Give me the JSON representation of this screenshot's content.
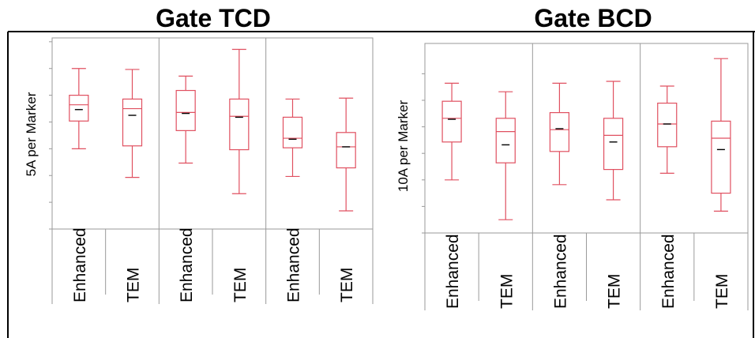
{
  "chart_data": [
    {
      "type": "box",
      "title": "Gate TCD",
      "ylabel": "5A per Marker",
      "categories": [
        "Enhanced",
        "TEM",
        "Enhanced",
        "TEM",
        "Enhanced",
        "TEM"
      ],
      "groups": 3,
      "ylim": [
        0,
        100
      ],
      "yticks": [
        0,
        14,
        28,
        42,
        56,
        70,
        84,
        98
      ],
      "grid": false,
      "box_color": "#e05060",
      "boxes": [
        {
          "min": 42,
          "q1": 56.5,
          "median": 65,
          "q3": 70,
          "max": 84,
          "mean": 62.5
        },
        {
          "min": 27,
          "q1": 43.5,
          "median": 63,
          "q3": 68,
          "max": 83.5,
          "mean": 59.5
        },
        {
          "min": 34.5,
          "q1": 51.5,
          "median": 61,
          "q3": 72.5,
          "max": 80,
          "mean": 60.5
        },
        {
          "min": 18.5,
          "q1": 41.5,
          "median": 59,
          "q3": 68,
          "max": 94,
          "mean": 58.5
        },
        {
          "min": 27.5,
          "q1": 42.5,
          "median": 47.5,
          "q3": 58.5,
          "max": 68,
          "mean": 47
        },
        {
          "min": 9.5,
          "q1": 32,
          "median": 43,
          "q3": 50.5,
          "max": 68.5,
          "mean": 43
        }
      ]
    },
    {
      "type": "box",
      "title": "Gate BCD",
      "ylabel": "10A per Marker",
      "categories": [
        "Enhanced",
        "TEM",
        "Enhanced",
        "TEM",
        "Enhanced",
        "TEM"
      ],
      "groups": 3,
      "ylim": [
        0,
        100
      ],
      "yticks": [
        0,
        14,
        28,
        42,
        56,
        70,
        84
      ],
      "grid": false,
      "box_color": "#e05060",
      "boxes": [
        {
          "min": 28,
          "q1": 48,
          "median": 60.5,
          "q3": 69.5,
          "max": 79,
          "mean": 60
        },
        {
          "min": 7,
          "q1": 37,
          "median": 53.5,
          "q3": 60.5,
          "max": 74.5,
          "mean": 46.5
        },
        {
          "min": 25.5,
          "q1": 43,
          "median": 54.5,
          "q3": 63.5,
          "max": 79,
          "mean": 55
        },
        {
          "min": 17.5,
          "q1": 33.5,
          "median": 51.5,
          "q3": 60.5,
          "max": 80,
          "mean": 48
        },
        {
          "min": 31.5,
          "q1": 45.5,
          "median": 57.5,
          "q3": 68.5,
          "max": 77.5,
          "mean": 57.5
        },
        {
          "min": 11.5,
          "q1": 21,
          "median": 50,
          "q3": 59,
          "max": 92,
          "mean": 44
        }
      ]
    }
  ]
}
